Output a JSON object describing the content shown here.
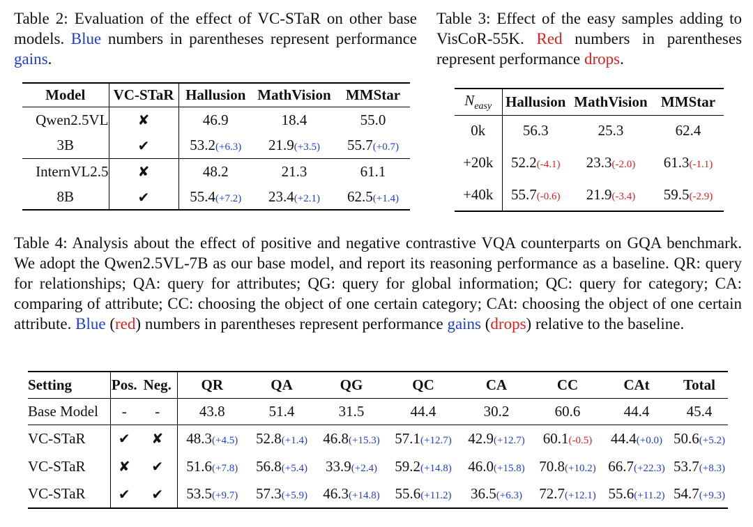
{
  "table2": {
    "caption": {
      "label": "Table 2:",
      "part1": "Evaluation of the effect of VC-STaR on other base models.",
      "highlight_blue": "Blue",
      "part2": "numbers in parentheses represent performance",
      "highlight_gains": "gains",
      "end": "."
    },
    "headers": [
      "Model",
      "VC-STaR",
      "Hallusion",
      "MathVision",
      "MMStar"
    ],
    "groups": [
      {
        "model_line1": "Qwen2.5VL",
        "model_line2": "3B",
        "rows": [
          {
            "mark": "✘",
            "hallusion": "46.9",
            "mathvision": "18.4",
            "mmstar": "55.0"
          },
          {
            "mark": "✔",
            "hallusion": "53.2",
            "hallusion_delta": "(+6.3)",
            "mathvision": "21.9",
            "mathvision_delta": "(+3.5)",
            "mmstar": "55.7",
            "mmstar_delta": "(+0.7)"
          }
        ]
      },
      {
        "model_line1": "InternVL2.5",
        "model_line2": "8B",
        "rows": [
          {
            "mark": "✘",
            "hallusion": "48.2",
            "mathvision": "21.3",
            "mmstar": "61.1"
          },
          {
            "mark": "✔",
            "hallusion": "55.4",
            "hallusion_delta": "(+7.2)",
            "mathvision": "23.4",
            "mathvision_delta": "(+2.1)",
            "mmstar": "62.5",
            "mmstar_delta": "(+1.4)"
          }
        ]
      }
    ]
  },
  "table3": {
    "caption": {
      "label": "Table 3:",
      "part1": "Effect of the easy samples adding to VisCoR-55K.",
      "highlight_red": "Red",
      "part2": "numbers in parentheses represent performance",
      "highlight_drops": "drops",
      "end": "."
    },
    "header_n": "N",
    "header_sub": "easy",
    "headers": [
      "Hallusion",
      "MathVision",
      "MMStar"
    ],
    "rows": [
      {
        "n": "0k",
        "hallusion": "56.3",
        "mathvision": "25.3",
        "mmstar": "62.4"
      },
      {
        "n": "+20k",
        "hallusion": "52.2",
        "hallusion_delta": "(-4.1)",
        "mathvision": "23.3",
        "mathvision_delta": "(-2.0)",
        "mmstar": "61.3",
        "mmstar_delta": "(-1.1)"
      },
      {
        "n": "+40k",
        "hallusion": "55.7",
        "hallusion_delta": "(-0.6)",
        "mathvision": "21.9",
        "mathvision_delta": "(-3.4)",
        "mmstar": "59.5",
        "mmstar_delta": "(-2.9)"
      }
    ]
  },
  "table4": {
    "caption": {
      "label": "Table 4:",
      "part1": "Analysis about the effect of positive and negative contrastive VQA counterparts on GQA benchmark. We adopt the Qwen2.5VL-7B as our base model, and report its reasoning performance as a baseline. QR: query for relationships; QA: query for attributes; QG: query for global information; QC: query for category; CA: comparing of attribute; CC: choosing the object of one certain category; CAt: choosing the object of one certain attribute.",
      "highlight_blue": "Blue",
      "paren_red": "red",
      "part2": "numbers in parentheses represent performance",
      "highlight_gains": "gains",
      "highlight_drops": "drops",
      "end": "relative to the baseline."
    },
    "headers": [
      "Setting",
      "Pos.",
      "Neg.",
      "QR",
      "QA",
      "QG",
      "QC",
      "CA",
      "CC",
      "CAt",
      "Total"
    ],
    "base_row": {
      "setting": "Base Model",
      "pos": "-",
      "neg": "-",
      "values": [
        "43.8",
        "51.4",
        "31.5",
        "44.4",
        "30.2",
        "60.6",
        "44.4",
        "45.4"
      ]
    },
    "rows": [
      {
        "setting": "VC-STaR",
        "pos": "✔",
        "neg": "✘",
        "values": [
          "48.3",
          "52.8",
          "46.8",
          "57.1",
          "42.9",
          "60.1",
          "44.4",
          "50.6"
        ],
        "deltas": [
          "(+4.5)",
          "(+1.4)",
          "(+15.3)",
          "(+12.7)",
          "(+12.7)",
          "(-0.5)",
          "(+0.0)",
          "(+5.2)"
        ]
      },
      {
        "setting": "VC-STaR",
        "pos": "✘",
        "neg": "✔",
        "values": [
          "51.6",
          "56.8",
          "33.9",
          "59.2",
          "46.0",
          "70.8",
          "66.7",
          "53.7"
        ],
        "deltas": [
          "(+7.8)",
          "(+5.4)",
          "(+2.4)",
          "(+14.8)",
          "(+15.8)",
          "(+10.2)",
          "(+22.3)",
          "(+8.3)"
        ]
      },
      {
        "setting": "VC-STaR",
        "pos": "✔",
        "neg": "✔",
        "values": [
          "53.5",
          "57.3",
          "46.3",
          "55.6",
          "36.5",
          "72.7",
          "55.6",
          "54.7"
        ],
        "deltas": [
          "(+9.7)",
          "(+5.9)",
          "(+14.8)",
          "(+11.2)",
          "(+6.3)",
          "(+12.1)",
          "(+11.2)",
          "(+9.3)"
        ]
      }
    ]
  }
}
